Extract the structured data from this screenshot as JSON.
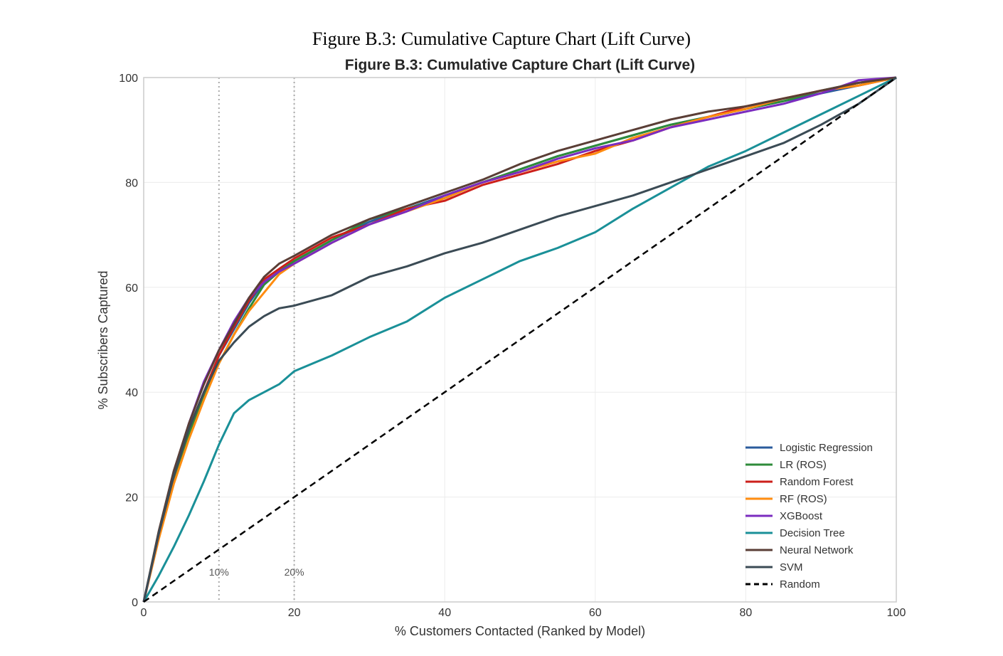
{
  "document": {
    "caption": "Figure B.3: Cumulative Capture Chart (Lift Curve)"
  },
  "chart_data": {
    "type": "line",
    "title": "Figure B.3: Cumulative Capture Chart (Lift Curve)",
    "xlabel": "% Customers Contacted (Ranked by Model)",
    "ylabel": "% Subscribers Captured",
    "xlim": [
      0,
      100
    ],
    "ylim": [
      0,
      100
    ],
    "xticks": [
      0,
      20,
      40,
      60,
      80,
      100
    ],
    "yticks": [
      0,
      20,
      40,
      60,
      80,
      100
    ],
    "xtick_labels": [
      "0",
      "20",
      "40",
      "60",
      "80",
      "100"
    ],
    "ytick_labels": [
      "0",
      "20",
      "40",
      "60",
      "80",
      "100"
    ],
    "grid": true,
    "legend_position": "lower-right",
    "reference_lines": [
      {
        "x": 10,
        "label": "10%",
        "style": "dotted"
      },
      {
        "x": 20,
        "label": "20%",
        "style": "dotted"
      }
    ],
    "x": [
      0,
      2,
      4,
      6,
      8,
      10,
      12,
      14,
      16,
      18,
      20,
      25,
      30,
      35,
      40,
      45,
      50,
      55,
      60,
      65,
      70,
      75,
      80,
      85,
      90,
      95,
      100
    ],
    "series": [
      {
        "name": "Logistic Regression",
        "color": "#2a5b9c",
        "style": "solid",
        "values": [
          0,
          13,
          24,
          33,
          40,
          47,
          52,
          57,
          61,
          63,
          65,
          69,
          72.5,
          75,
          77.5,
          80,
          82.5,
          85,
          87,
          89,
          91,
          92.5,
          94,
          95.5,
          97,
          98.5,
          100
        ]
      },
      {
        "name": "LR (ROS)",
        "color": "#2e8b3a",
        "style": "solid",
        "values": [
          0,
          12.5,
          23,
          32,
          39,
          45.5,
          51,
          56,
          60.5,
          63,
          65,
          69,
          73,
          75,
          77,
          80,
          82.5,
          85,
          87,
          89,
          91,
          92.5,
          94,
          95.5,
          97.5,
          99,
          100
        ]
      },
      {
        "name": "Random Forest",
        "color": "#cc1f1a",
        "style": "solid",
        "values": [
          0,
          13,
          24,
          33,
          40,
          47,
          52.5,
          57.5,
          61.5,
          63.5,
          65.5,
          69.5,
          72,
          75,
          76.5,
          79.5,
          81.5,
          83.5,
          86,
          88,
          90.5,
          92.5,
          94.5,
          96,
          97.5,
          98.5,
          100
        ]
      },
      {
        "name": "RF (ROS)",
        "color": "#ff8c10",
        "style": "solid",
        "values": [
          0,
          12,
          22.5,
          31,
          38.5,
          45.5,
          51,
          55.5,
          59,
          62.5,
          64.5,
          68.5,
          72,
          74.5,
          77,
          80,
          82,
          84,
          85.5,
          88.5,
          90.5,
          92.5,
          94,
          96,
          97.5,
          98.5,
          100
        ]
      },
      {
        "name": "XGBoost",
        "color": "#7b2cbf",
        "style": "solid",
        "values": [
          0,
          13,
          24.5,
          34,
          42,
          48,
          53.5,
          58,
          61,
          63,
          64.5,
          68.5,
          72,
          74.5,
          77.5,
          80,
          82,
          84.5,
          86.5,
          88,
          90.5,
          92,
          93.5,
          95,
          97,
          99.5,
          100
        ]
      },
      {
        "name": "Decision Tree",
        "color": "#1a9098",
        "style": "solid",
        "values": [
          0,
          5,
          10.5,
          16.5,
          23,
          30,
          36,
          38.5,
          40,
          41.5,
          44,
          47,
          50.5,
          53.5,
          58,
          61.5,
          65,
          67.5,
          70.5,
          75,
          79,
          83,
          86,
          89.5,
          93,
          96.5,
          100
        ]
      },
      {
        "name": "Neural Network",
        "color": "#5a3e36",
        "style": "solid",
        "values": [
          0,
          13.5,
          25,
          34,
          41.5,
          48,
          53,
          58,
          62,
          64.5,
          66,
          70,
          73,
          75.5,
          78,
          80.5,
          83.5,
          86,
          88,
          90,
          92,
          93.5,
          94.5,
          96,
          97.5,
          99,
          100
        ]
      },
      {
        "name": "SVM",
        "color": "#3b4b55",
        "style": "solid",
        "values": [
          0,
          13,
          24,
          33,
          40,
          46,
          49.5,
          52.5,
          54.5,
          56,
          56.5,
          58.5,
          62,
          64,
          66.5,
          68.5,
          71,
          73.5,
          75.5,
          77.5,
          80,
          82.5,
          85,
          87.5,
          91,
          95,
          100
        ]
      },
      {
        "name": "Random",
        "color": "#000000",
        "style": "dashed",
        "values": [
          0,
          2,
          4,
          6,
          8,
          10,
          12,
          14,
          16,
          18,
          20,
          25,
          30,
          35,
          40,
          45,
          50,
          55,
          60,
          65,
          70,
          75,
          80,
          85,
          90,
          95,
          100
        ]
      }
    ]
  }
}
